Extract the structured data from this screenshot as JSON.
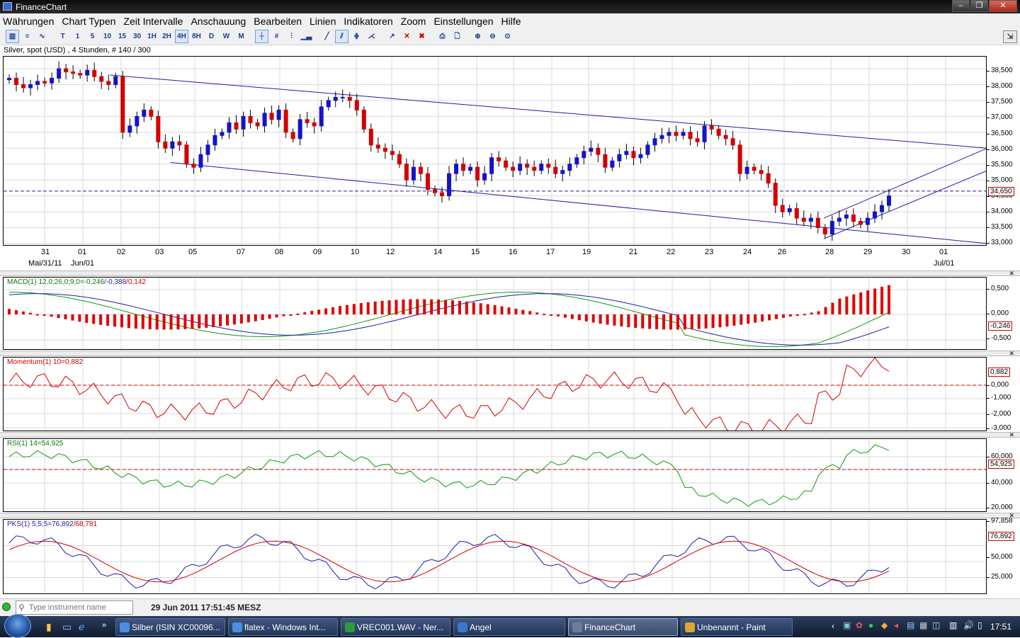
{
  "window": {
    "title": "FinanceChart"
  },
  "menu": [
    "Währungen",
    "Chart Typen",
    "Zeit Intervalle",
    "Anschauung",
    "Bearbeiten",
    "Linien",
    "Indikatoren",
    "Zoom",
    "Einstellungen",
    "Hilfe"
  ],
  "toolbar": {
    "intervals": [
      "T",
      "1",
      "5",
      "10",
      "15",
      "30",
      "1H",
      "2H",
      "4H",
      "8H",
      "D",
      "W",
      "M"
    ],
    "active_interval": "4H"
  },
  "instrument": {
    "header": "Silver, spot (USD) , 4 Stunden, # 140 / 300"
  },
  "price_axis": {
    "ticks": [
      "38,500",
      "38,000",
      "37,500",
      "37,000",
      "36,500",
      "36,000",
      "35,500",
      "35,000",
      "34,500",
      "34,000",
      "33,500",
      "33,000"
    ],
    "current": "34,650"
  },
  "x_axis": {
    "days": [
      "31",
      "01",
      "02",
      "03",
      "05",
      "07",
      "08",
      "09",
      "10",
      "12",
      "14",
      "15",
      "16",
      "17",
      "19",
      "21",
      "22",
      "23",
      "24",
      "26",
      "28",
      "29",
      "30",
      "01"
    ],
    "months": [
      "Mai/31/11",
      "Jun/01",
      "Jul/01"
    ]
  },
  "macd": {
    "label_prefix": "MACD(1) 12,0;26,0;9,0=",
    "label_v1": "-0,246",
    "label_v2": "/-0,388",
    "label_v3": "/0,142",
    "ticks": [
      "0,500",
      "0,000",
      "-0,500"
    ],
    "current": "-0,246"
  },
  "momentum": {
    "label": "Momentum(1) 10=0,882",
    "ticks": [
      "0,000",
      "-1,000",
      "-2,000",
      "-3,000"
    ],
    "current": "0,882"
  },
  "rsi": {
    "label": "RSI(1) 14=54,925",
    "ticks": [
      "60,000",
      "40,000",
      "20,000"
    ],
    "current": "54,925"
  },
  "pks": {
    "label_prefix": "PKS(1) 5;5;5=76,892",
    "label_v2": "/68,781",
    "ticks": [
      "50,000",
      "25,000"
    ],
    "top_tick": "97,858",
    "current": "76,892"
  },
  "status": {
    "search_placeholder": "Type instrument name",
    "datetime": "29 Jun 2011 17:51:45 MESZ"
  },
  "taskbar": {
    "tasks": [
      "Silber (ISIN XC00096...",
      "flatex - Windows Int...",
      "VREC001.WAV - Ner...",
      "Angel",
      "FinanceChart",
      "Unbenannt - Paint"
    ],
    "active_task": "FinanceChart",
    "clock": "17:51"
  },
  "colors": {
    "up": "#1414c8",
    "down": "#d40000",
    "trend": "#1e1ea8",
    "signal": "#119911",
    "frame": "#000000"
  },
  "chart_data": {
    "type": "candlestick",
    "y_range": [
      33000,
      38700
    ],
    "horizontal_line": 34650,
    "closes": [
      38200,
      38000,
      37900,
      38000,
      38100,
      38050,
      38200,
      38500,
      38400,
      38350,
      38300,
      38450,
      38250,
      38100,
      38000,
      38250,
      36500,
      36700,
      37000,
      37200,
      37000,
      36200,
      36000,
      36200,
      36100,
      35500,
      35400,
      35800,
      36100,
      36400,
      36500,
      36800,
      36600,
      37000,
      36800,
      36700,
      37100,
      36900,
      37200,
      36500,
      36300,
      36900,
      36800,
      36700,
      37300,
      37500,
      37600,
      37600,
      37500,
      37200,
      36600,
      36100,
      36000,
      35900,
      35800,
      35500,
      35000,
      35400,
      35200,
      34700,
      34600,
      34500,
      35200,
      35500,
      35300,
      35400,
      35000,
      35200,
      35700,
      35600,
      35400,
      35300,
      35500,
      35400,
      35300,
      35500,
      35400,
      35200,
      35300,
      35500,
      35700,
      35900,
      36000,
      35800,
      35400,
      35600,
      35800,
      35900,
      35700,
      35800,
      36100,
      36300,
      36400,
      36500,
      36400,
      36500,
      36300,
      36200,
      36700,
      36600,
      36400,
      36300,
      36100,
      35200,
      35400,
      35300,
      35200,
      34900,
      34200,
      34000,
      34100,
      33800,
      33700,
      33800,
      33500,
      33300,
      33700,
      33800,
      33900,
      33700,
      33600,
      33800,
      34000,
      34200,
      34500
    ]
  }
}
